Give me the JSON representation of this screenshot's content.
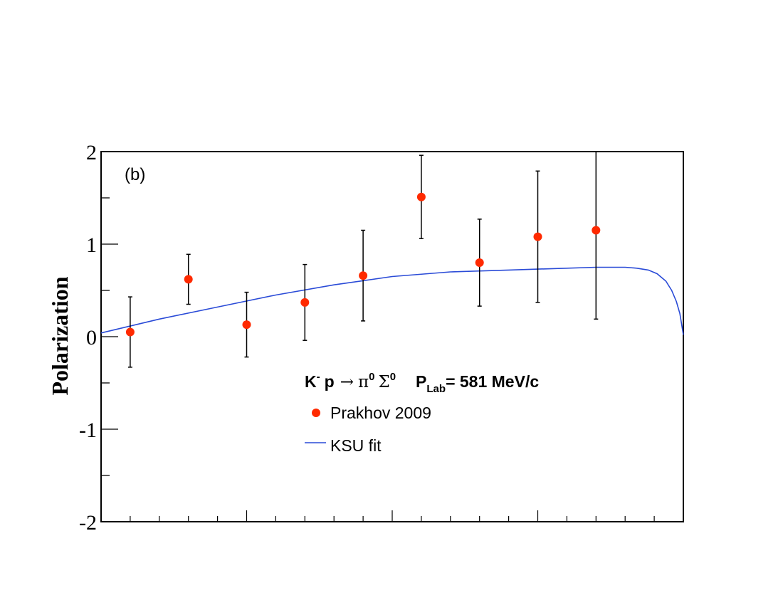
{
  "chart_data": {
    "type": "scatter",
    "panel_label": "(b)",
    "ylabel": "Polarization",
    "xlim": [
      0,
      10
    ],
    "ylim": [
      -2,
      2
    ],
    "yticks": [
      "2",
      "1",
      "0",
      "-1",
      "-2"
    ],
    "x_tick_labels_visible": false,
    "grid": false,
    "reaction": {
      "k": "K",
      "k_sup": "-",
      "p": "p",
      "arrow": "→",
      "pi": "π",
      "pi_sup": "0",
      "sigma": "Σ",
      "sigma_sup": "0",
      "plab": "P",
      "plab_sub": "Lab",
      "plab_value": "= 581 MeV/c"
    },
    "legend": {
      "placement": "center",
      "data_label": "Prakhov 2009",
      "fit_label": "KSU fit"
    },
    "series": [
      {
        "name": "Prakhov 2009",
        "kind": "points",
        "color": "#ff2a00",
        "x": [
          0.5,
          1.5,
          2.5,
          3.5,
          4.5,
          5.5,
          6.5,
          7.5,
          8.5
        ],
        "y": [
          0.05,
          0.62,
          0.13,
          0.37,
          0.66,
          1.51,
          0.8,
          1.08,
          1.15
        ],
        "yerr": [
          0.38,
          0.27,
          0.35,
          0.41,
          0.49,
          0.45,
          0.47,
          0.71,
          0.96
        ]
      },
      {
        "name": "KSU fit",
        "kind": "line",
        "color": "#2a4bd7",
        "x": [
          0.0,
          1.0,
          2.0,
          3.0,
          4.0,
          5.0,
          6.0,
          7.0,
          7.5,
          8.0,
          8.5,
          9.0,
          9.2,
          9.4,
          9.55,
          9.7,
          9.8,
          9.88,
          9.94,
          10.0
        ],
        "y": [
          0.04,
          0.19,
          0.32,
          0.45,
          0.56,
          0.65,
          0.7,
          0.72,
          0.73,
          0.74,
          0.75,
          0.75,
          0.74,
          0.72,
          0.68,
          0.6,
          0.5,
          0.38,
          0.25,
          0.02
        ]
      }
    ]
  }
}
